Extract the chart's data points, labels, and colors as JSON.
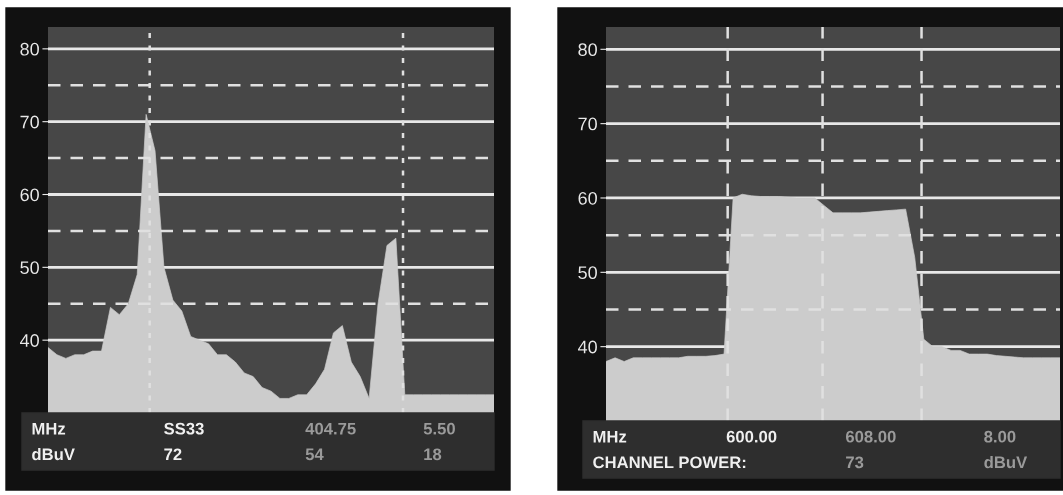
{
  "chart_data": [
    {
      "type": "area",
      "categories": [
        null,
        null,
        null,
        null,
        null,
        null,
        null,
        null,
        null,
        null,
        null,
        null,
        null,
        null,
        null,
        null,
        null,
        null,
        null,
        null,
        null,
        null,
        null,
        null,
        null,
        null,
        null,
        null,
        null,
        null,
        null,
        null,
        null,
        null,
        null,
        null,
        null,
        null,
        null,
        null,
        null,
        null,
        null,
        null,
        null,
        null,
        null,
        null,
        null,
        null,
        null
      ],
      "series": [
        {
          "color": "#cccccc",
          "values": [
            39,
            38,
            37.5,
            38,
            38,
            38.5,
            38.5,
            44.5,
            43.5,
            45,
            49,
            71,
            66,
            50,
            45.5,
            44,
            40.5,
            40,
            39.5,
            38,
            38,
            37,
            35.5,
            35,
            33.5,
            33,
            32,
            32,
            32.5,
            32.5,
            34,
            36,
            41,
            42,
            37,
            35,
            32,
            45,
            53,
            54,
            32.5,
            32.5,
            32.5,
            32.5,
            32.5,
            32.5,
            32.5,
            32.5,
            32.5,
            32.5,
            32.5
          ]
        }
      ],
      "ylim": [
        30,
        83
      ],
      "yticks": [
        40,
        50,
        60,
        70,
        80
      ],
      "tick_labels": "y",
      "grid": "y",
      "ref_lines": [
        {
          "axis": "y",
          "value": 45,
          "line_style": "dashed",
          "color": "#e0e0e0"
        },
        {
          "axis": "y",
          "value": 55,
          "line_style": "dashed",
          "color": "#e0e0e0"
        },
        {
          "axis": "y",
          "value": 65,
          "line_style": "dashed",
          "color": "#e0e0e0"
        },
        {
          "axis": "y",
          "value": 75,
          "line_style": "dashed",
          "color": "#e0e0e0"
        }
      ],
      "annotations": [
        "MHz",
        "SS33",
        "404.75",
        "5.50",
        "dBuV",
        "72",
        "54",
        "18"
      ]
    },
    {
      "type": "area",
      "categories": [
        null,
        null,
        null,
        null,
        null,
        null,
        null,
        null,
        null,
        null,
        null,
        null,
        null,
        null,
        null,
        null,
        null,
        null,
        null,
        null,
        null,
        null,
        null,
        null,
        null,
        null,
        null,
        null,
        null,
        null,
        null,
        null,
        null,
        null,
        null,
        null,
        null,
        null,
        null,
        null,
        null,
        null,
        null,
        null,
        null,
        null,
        null,
        null,
        null,
        null,
        null
      ],
      "series": [
        {
          "color": "#cccccc",
          "values": [
            38,
            38.5,
            38,
            38.5,
            38.5,
            38.5,
            38.5,
            38.5,
            38.5,
            38.7,
            38.7,
            38.7,
            38.8,
            39,
            60,
            60.5,
            60.3,
            60.2,
            60.2,
            60.2,
            60.1,
            60,
            60,
            60,
            59,
            58,
            58,
            58,
            58,
            58.1,
            58.2,
            58.3,
            58.4,
            58.5,
            52,
            41,
            40,
            40,
            39.5,
            39.5,
            39,
            39,
            39,
            38.8,
            38.7,
            38.6,
            38.5,
            38.5,
            38.5,
            38.5,
            38.5
          ]
        }
      ],
      "ylim": [
        30,
        83
      ],
      "yticks": [
        40,
        50,
        60,
        70,
        80
      ],
      "tick_labels": "y",
      "grid": "y",
      "ref_lines": [
        {
          "axis": "y",
          "value": 45,
          "line_style": "dashed",
          "color": "#e0e0e0"
        },
        {
          "axis": "y",
          "value": 55,
          "line_style": "dashed",
          "color": "#e0e0e0"
        },
        {
          "axis": "y",
          "value": 65,
          "line_style": "dashed",
          "color": "#e0e0e0"
        },
        {
          "axis": "y",
          "value": 75,
          "line_style": "dashed",
          "color": "#e0e0e0"
        }
      ],
      "annotations": [
        "MHz",
        "600.00",
        "608.00",
        "8.00",
        "CHANNEL POWER:",
        "73",
        "dBuV"
      ]
    }
  ]
}
